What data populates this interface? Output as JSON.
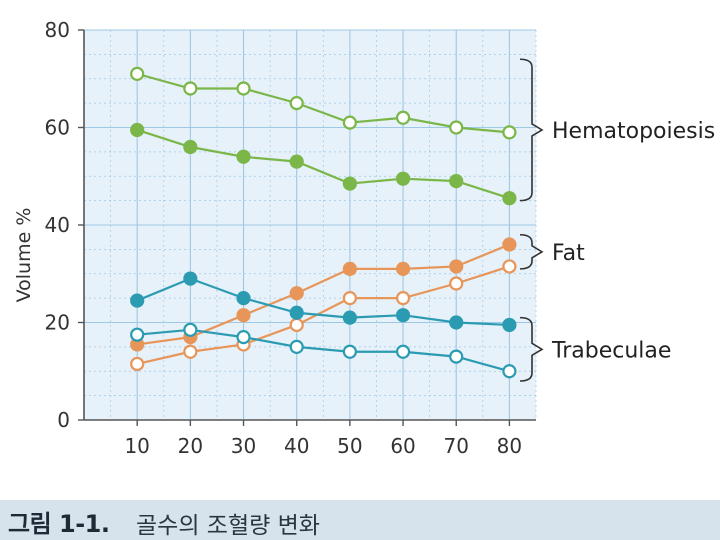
{
  "chart_data": {
    "type": "line",
    "ylabel": "Volume %",
    "xlabel": "",
    "xlim": [
      0,
      85
    ],
    "ylim": [
      0,
      80
    ],
    "x_ticks": [
      10,
      20,
      30,
      40,
      50,
      60,
      70,
      80
    ],
    "y_ticks": [
      0,
      20,
      40,
      60,
      80
    ],
    "grid": true,
    "x": [
      10,
      20,
      30,
      40,
      50,
      60,
      70,
      80
    ],
    "series": [
      {
        "group": "Hematopoiesis",
        "marker": "open",
        "color": "#7ab648",
        "values": [
          71,
          68,
          68,
          65,
          61,
          62,
          60,
          59
        ]
      },
      {
        "group": "Hematopoiesis",
        "marker": "filled",
        "color": "#7ab648",
        "values": [
          59.5,
          56,
          54,
          53,
          48.5,
          49.5,
          49,
          45.5
        ]
      },
      {
        "group": "Fat",
        "marker": "filled",
        "color": "#e8955a",
        "values": [
          15.5,
          17,
          21.5,
          26,
          31,
          31,
          31.5,
          36
        ]
      },
      {
        "group": "Fat",
        "marker": "open",
        "color": "#e8955a",
        "values": [
          11.5,
          14,
          15.5,
          19.5,
          25,
          25,
          28,
          31.5
        ]
      },
      {
        "group": "Trabeculae",
        "marker": "filled",
        "color": "#2b9bb2",
        "values": [
          24.5,
          29,
          25,
          22,
          21,
          21.5,
          20,
          19.5
        ]
      },
      {
        "group": "Trabeculae",
        "marker": "open",
        "color": "#2b9bb2",
        "values": [
          17.5,
          18.5,
          17,
          15,
          14,
          14,
          13,
          10
        ]
      }
    ],
    "annotations": [
      {
        "text": "Hematopoiesis",
        "brace_range": [
          45,
          74
        ]
      },
      {
        "text": "Fat",
        "brace_range": [
          31,
          38
        ]
      },
      {
        "text": "Trabeculae",
        "brace_range": [
          8,
          21
        ]
      }
    ]
  },
  "caption": {
    "label": "그림 1-1.",
    "text": "골수의 조혈량 변화"
  },
  "colors": {
    "plot_background": "#e6f1f9",
    "grid": "#9ec8e6",
    "caption_background": "#d7e3ec"
  }
}
